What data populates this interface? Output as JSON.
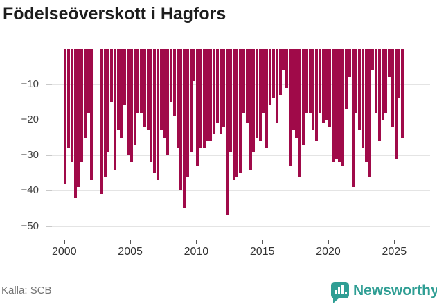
{
  "title": "Födelseöverskott i Hagfors",
  "footer": {
    "source": "Källa: SCB"
  },
  "brand": {
    "name": "Newsworthy",
    "logo_icon": "bar-chart-speech-bubble-icon",
    "color": "#2f9e94"
  },
  "chart_data": {
    "type": "bar",
    "title": "Födelseöverskott i Hagfors",
    "period": "quarterly",
    "start_period": "2000 Q1",
    "end_period": "2025 Q3",
    "xlabel": "",
    "ylabel": "",
    "ylim": [
      -50,
      0
    ],
    "grid": "horizontal",
    "legend": "none",
    "bar_color": "#a00a49",
    "x_ticks": [
      2000,
      2005,
      2010,
      2015,
      2020,
      2025
    ],
    "x_tick_labels": [
      "2000",
      "2005",
      "2010",
      "2015",
      "2020",
      "2025"
    ],
    "y_ticks": [
      -10,
      -20,
      -30,
      -40,
      -50
    ],
    "y_tick_labels": [
      "−10",
      "−20",
      "−30",
      "−40",
      "−50"
    ],
    "series": [
      {
        "name": "Födelseöverskott",
        "values": [
          -38,
          -28,
          -32,
          -42,
          -39,
          -32,
          -25,
          -18,
          -37,
          0,
          0,
          -41,
          -36,
          -29,
          -15,
          -34,
          -23,
          -25,
          -16,
          -30,
          -32,
          -27,
          -18,
          -18,
          -22,
          -23,
          -32,
          -35,
          -37,
          -23,
          -25,
          -30,
          -15,
          -19,
          -28,
          -40,
          -45,
          -36,
          -29,
          -9,
          -33,
          -28,
          -28,
          -26,
          -26,
          -24,
          -21,
          -24,
          -22,
          -47,
          -29,
          -37,
          -36,
          -35,
          -18,
          -21,
          -34,
          -29,
          -25,
          -26,
          -18,
          -28,
          -16,
          -14,
          -21,
          -13,
          -6,
          -11,
          -33,
          -23,
          -25,
          -36,
          -27,
          -18,
          -18,
          -23,
          -26,
          -18,
          -21,
          -20,
          -22,
          -32,
          -31,
          -32,
          -33,
          -17,
          -8,
          -39,
          -18,
          -23,
          -28,
          -32,
          -36,
          -6,
          -18,
          -26,
          -20,
          -18,
          -8,
          -22,
          -31,
          -14,
          -25
        ]
      }
    ]
  }
}
